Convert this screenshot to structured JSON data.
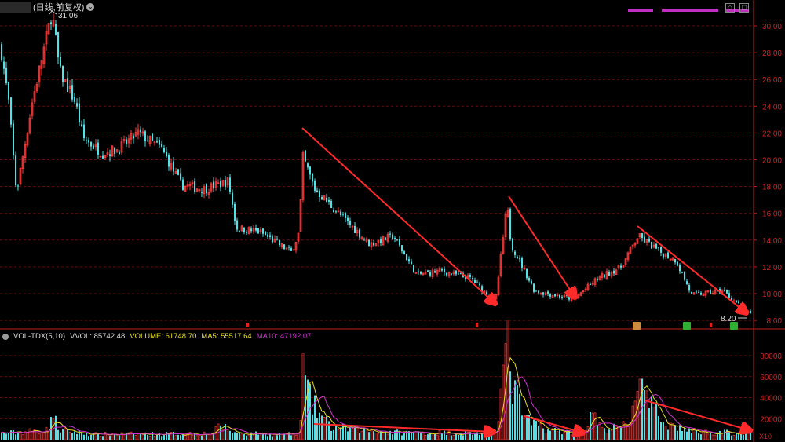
{
  "header": {
    "period": "日线",
    "adjust": "前复权",
    "period_label": "(日线,前复权)"
  },
  "top_right_icons": [
    "diamond-icon",
    "square-icon"
  ],
  "vol_header": {
    "indicator": "VOL-TDX(5,10)",
    "vvol": "VVOL: 85742.48",
    "volume": "VOLUME: 61748.70",
    "ma5": "MA5: 55517.64",
    "ma10": "MA10: 47192.07"
  },
  "colors": {
    "up": "#ff3b3b",
    "down": "#4fe3e8",
    "ma5": "#e8e020",
    "ma10": "#d030d0",
    "axis": "#c0201e",
    "grid": "#5a1010",
    "arrow": "#ff2a2a"
  },
  "chart_data": [
    {
      "type": "candlestick",
      "title": "",
      "yaxis_ticks": [
        "30.00",
        "28.00",
        "26.00",
        "24.00",
        "22.00",
        "20.00",
        "18.00",
        "16.00",
        "14.00",
        "12.00",
        "10.00",
        "8.00"
      ],
      "ylim": [
        7.8,
        31.9
      ],
      "max_label": "31.06",
      "min_label": "8.20",
      "grid": true,
      "price_path": [
        [
          0,
          28.4
        ],
        [
          10,
          24.3
        ],
        [
          20,
          17.5
        ],
        [
          40,
          24.3
        ],
        [
          60,
          29.6
        ],
        [
          65,
          31.06
        ],
        [
          75,
          26.6
        ],
        [
          95,
          24.3
        ],
        [
          105,
          21.6
        ],
        [
          130,
          20.5
        ],
        [
          150,
          20.8
        ],
        [
          175,
          22.0
        ],
        [
          205,
          20.8
        ],
        [
          230,
          18.1
        ],
        [
          260,
          17.8
        ],
        [
          290,
          18.4
        ],
        [
          300,
          14.9
        ],
        [
          330,
          14.6
        ],
        [
          370,
          13.1
        ],
        [
          380,
          14.6
        ],
        [
          385,
          20.2
        ],
        [
          400,
          17.8
        ],
        [
          430,
          16.0
        ],
        [
          470,
          13.7
        ],
        [
          500,
          14.3
        ],
        [
          530,
          11.4
        ],
        [
          560,
          11.7
        ],
        [
          600,
          11.1
        ],
        [
          630,
          9.3
        ],
        [
          645,
          16.6
        ],
        [
          650,
          13.7
        ],
        [
          680,
          10.2
        ],
        [
          730,
          9.6
        ],
        [
          760,
          11.1
        ],
        [
          790,
          12.0
        ],
        [
          812,
          14.3
        ],
        [
          840,
          13.1
        ],
        [
          860,
          12.5
        ],
        [
          880,
          9.9
        ],
        [
          920,
          10.2
        ],
        [
          955,
          8.4
        ]
      ],
      "signals": [
        {
          "type": "mark"
        },
        {
          "type": "mark"
        },
        {
          "type": "badge",
          "color": "#d08a40"
        },
        {
          "type": "badge",
          "color": "#30b030"
        },
        {
          "type": "mark"
        },
        {
          "type": "badge",
          "color": "#30b030"
        }
      ]
    },
    {
      "type": "bar",
      "title": "VOL-TDX(5,10)",
      "yaxis_ticks": [
        "80000",
        "60000",
        "40000",
        "20000"
      ],
      "ylim": [
        0,
        80000
      ],
      "unit_label": "X10",
      "volume_path": [
        [
          0,
          6000
        ],
        [
          60,
          9000
        ],
        [
          65,
          25000
        ],
        [
          75,
          9000
        ],
        [
          120,
          5000
        ],
        [
          270,
          6000
        ],
        [
          280,
          14000
        ],
        [
          300,
          6000
        ],
        [
          380,
          5000
        ],
        [
          385,
          65000
        ],
        [
          395,
          35000
        ],
        [
          420,
          12000
        ],
        [
          500,
          7000
        ],
        [
          630,
          6000
        ],
        [
          645,
          90000
        ],
        [
          652,
          50000
        ],
        [
          670,
          18000
        ],
        [
          700,
          9000
        ],
        [
          740,
          6000
        ],
        [
          755,
          25000
        ],
        [
          765,
          9000
        ],
        [
          800,
          14000
        ],
        [
          812,
          60000
        ],
        [
          822,
          35000
        ],
        [
          850,
          15000
        ],
        [
          880,
          8000
        ],
        [
          955,
          6000
        ]
      ],
      "series": [
        {
          "name": "MA5"
        },
        {
          "name": "MA10"
        }
      ]
    }
  ]
}
